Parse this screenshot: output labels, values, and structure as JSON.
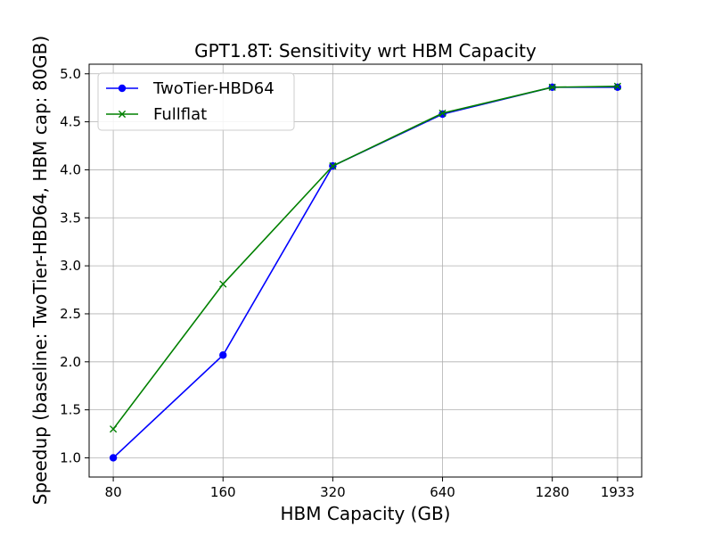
{
  "chart_data": {
    "type": "line",
    "title": "GPT1.8T: Sensitivity wrt HBM Capacity",
    "xlabel": "HBM Capacity (GB)",
    "ylabel": "Speedup (baseline: TwoTier-HBD64, HBM cap: 80GB)",
    "x_scale": "log2",
    "x": [
      80,
      160,
      320,
      640,
      1280,
      1933
    ],
    "x_tick_labels": [
      "80",
      "160",
      "320",
      "640",
      "1280",
      "1933"
    ],
    "y_ticks": [
      "1.0",
      "1.5",
      "2.0",
      "2.5",
      "3.0",
      "3.5",
      "4.0",
      "4.5",
      "5.0"
    ],
    "ylim": [
      0.8,
      5.1
    ],
    "grid": true,
    "legend_position": "upper-left",
    "series": [
      {
        "name": "TwoTier-HBD64",
        "color": "#0000ff",
        "marker": "circle",
        "values": [
          1.0,
          2.07,
          4.04,
          4.58,
          4.86,
          4.86
        ]
      },
      {
        "name": "Fullflat",
        "color": "#008000",
        "marker": "x",
        "values": [
          1.3,
          2.81,
          4.04,
          4.59,
          4.86,
          4.87
        ]
      }
    ]
  }
}
